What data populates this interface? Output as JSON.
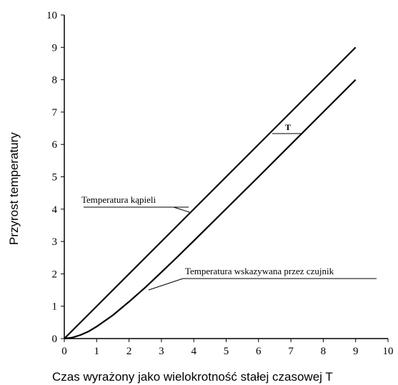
{
  "chart_data": {
    "type": "line",
    "title": "",
    "xlabel": "Czas wyrażony jako wielokrotność stałej czasowej T",
    "ylabel": "Przyrost temperatury",
    "xlim": [
      0,
      10
    ],
    "ylim": [
      0,
      10
    ],
    "x_ticks": [
      "0",
      "1",
      "2",
      "3",
      "4",
      "5",
      "6",
      "7",
      "8",
      "9",
      "10"
    ],
    "y_ticks": [
      "0",
      "1",
      "2",
      "3",
      "4",
      "5",
      "6",
      "7",
      "8",
      "9",
      "10"
    ],
    "grid": false,
    "series": [
      {
        "name": "Temperatura kąpieli",
        "x": [
          0,
          9
        ],
        "y": [
          0,
          9
        ]
      },
      {
        "name": "Temperatura wskazywana przez czujnik",
        "x": [
          0,
          0.25,
          0.5,
          0.75,
          1,
          1.5,
          2,
          2.5,
          3,
          3.5,
          4,
          5,
          6,
          7,
          8,
          9
        ],
        "y": [
          0,
          0.03,
          0.11,
          0.22,
          0.37,
          0.72,
          1.14,
          1.58,
          2.05,
          2.53,
          3.02,
          4.01,
          5.0,
          6.0,
          7.0,
          8.0
        ]
      }
    ],
    "annotations": [
      {
        "text": "Temperatura kąpieli",
        "series": 0
      },
      {
        "text": "Temperatura wskazywana przez czujnik",
        "series": 1
      },
      {
        "text": "T",
        "series": null
      }
    ]
  }
}
